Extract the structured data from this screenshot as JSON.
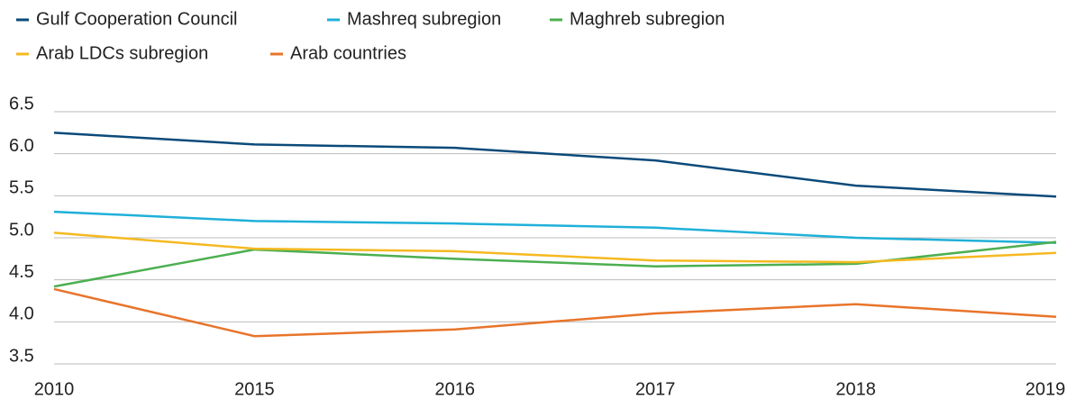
{
  "chart_data": {
    "type": "line",
    "categories": [
      "2010",
      "2015",
      "2016",
      "2017",
      "2018",
      "2019"
    ],
    "series": [
      {
        "name": "Gulf Cooperation Council",
        "color": "#0b4a7a",
        "values": [
          6.25,
          6.11,
          6.07,
          5.92,
          5.62,
          5.49
        ]
      },
      {
        "name": "Mashreq subregion",
        "color": "#1fb0d8",
        "values": [
          5.31,
          5.2,
          5.17,
          5.12,
          5.0,
          4.94
        ]
      },
      {
        "name": "Maghreb subregion",
        "color": "#4caf50",
        "values": [
          4.42,
          4.86,
          4.75,
          4.66,
          4.69,
          4.95
        ]
      },
      {
        "name": "Arab LDCs subregion",
        "color": "#f5b921",
        "values": [
          5.06,
          4.87,
          4.84,
          4.73,
          4.71,
          4.82
        ]
      },
      {
        "name": "Arab countries",
        "color": "#e8742a",
        "values": [
          4.39,
          3.83,
          3.91,
          4.1,
          4.21,
          4.06
        ]
      }
    ],
    "ylim": [
      3.5,
      6.5
    ],
    "yticks": [
      3.5,
      {
        "value": 4,
        "label": "4.0"
      },
      4.5,
      {
        "value": 5,
        "label": "5.0"
      },
      5.5,
      {
        "value": 6,
        "label": "6.0"
      },
      6.5
    ],
    "grid": true,
    "legend": "top"
  }
}
